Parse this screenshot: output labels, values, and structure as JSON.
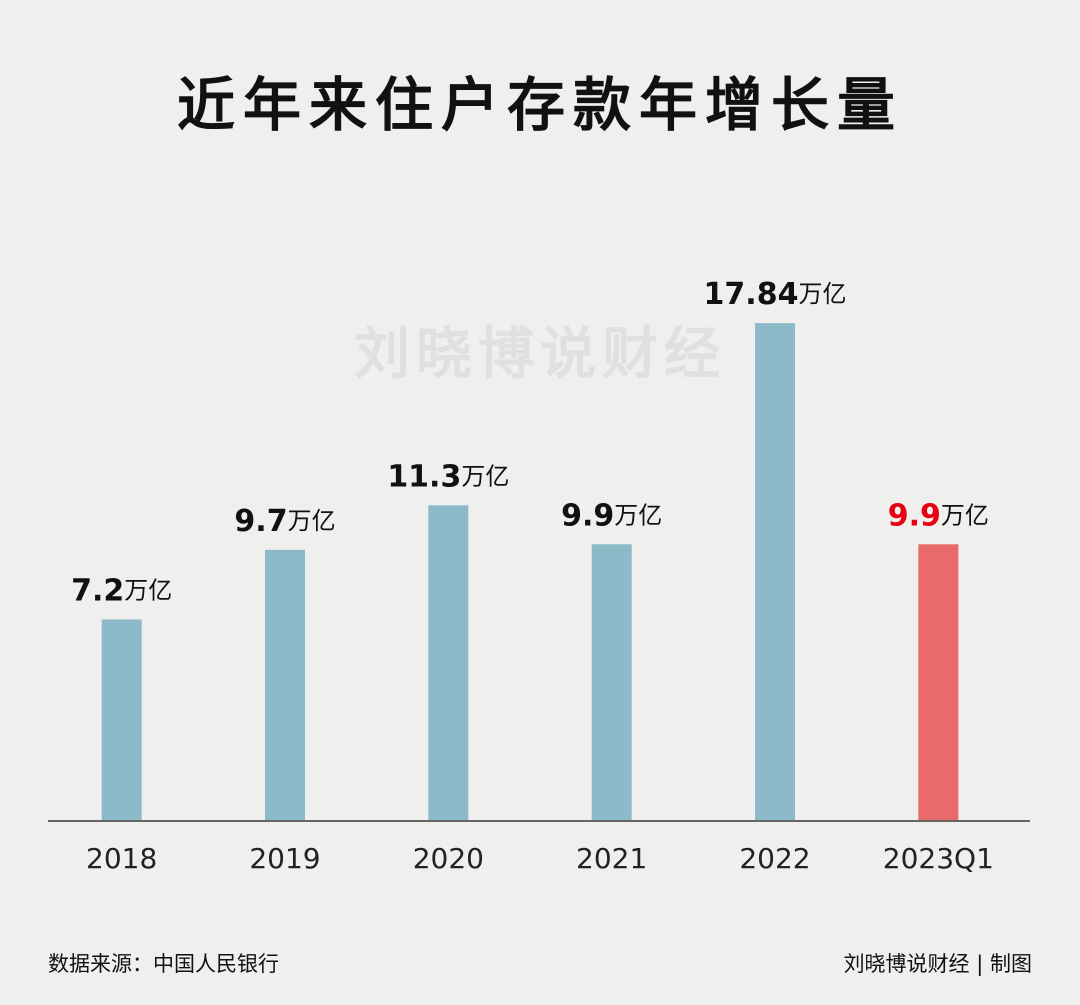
{
  "chart_data": {
    "type": "bar",
    "title": "近年来住户存款年增长量",
    "watermark": "刘晓博说财经",
    "categories": [
      "2018",
      "2019",
      "2020",
      "2021",
      "2022",
      "2023Q1"
    ],
    "values": [
      7.2,
      9.7,
      11.3,
      9.9,
      17.84,
      9.9
    ],
    "unit": "万亿",
    "colors": [
      "#8cbac8",
      "#8cbac8",
      "#8cbac8",
      "#8cbac8",
      "#8cbac8",
      "#e86a6a"
    ],
    "label_colors": [
      "#111111",
      "#111111",
      "#111111",
      "#111111",
      "#111111",
      "#e60012"
    ],
    "ylim": [
      0,
      20
    ],
    "source": "数据来源：中国人民银行",
    "credit": "刘晓博说财经 | 制图"
  }
}
